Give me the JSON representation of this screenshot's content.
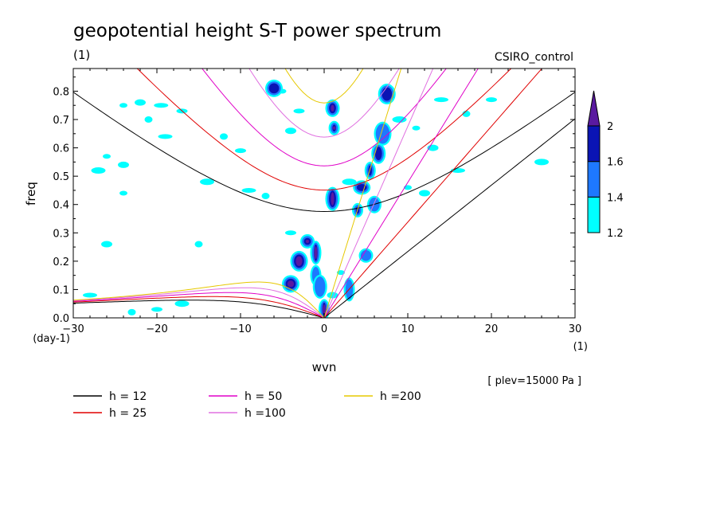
{
  "chart_data": {
    "type": "heatmap",
    "title": "geopotential height S-T power spectrum",
    "subtitle_left": "(1)",
    "subtitle_right": "CSIRO_control",
    "xlabel": "wvn",
    "ylabel": "freq",
    "x_unit": "(1)",
    "y_unit": "(day-1)",
    "xlim": [
      -30,
      30
    ],
    "ylim": [
      0,
      0.88
    ],
    "x_ticks": [
      "-30",
      "-20",
      "-10",
      "0",
      "10",
      "20",
      "30"
    ],
    "y_ticks": [
      "0.0",
      "0.1",
      "0.2",
      "0.3",
      "0.4",
      "0.5",
      "0.6",
      "0.7",
      "0.8"
    ],
    "note": "[ plev=15000 Pa ]",
    "colorbar": {
      "levels": [
        "1.2",
        "1.4",
        "1.6",
        "2"
      ],
      "colors": [
        "#00ffff",
        "#1e78ff",
        "#0a14b4",
        "#5a1aa0"
      ]
    },
    "dispersion_curves": [
      {
        "label": "h = 12",
        "color": "#000000",
        "h": 12
      },
      {
        "label": "h = 25",
        "color": "#e00000",
        "h": 25
      },
      {
        "label": "h = 50",
        "color": "#e000c8",
        "h": 50
      },
      {
        "label": "h =100",
        "color": "#e070e0",
        "h": 100
      },
      {
        "label": "h =200",
        "color": "#e6c800",
        "h": 200
      }
    ],
    "contour_blobs": [
      {
        "x": 1.2,
        "y": 0.67,
        "level": 3
      },
      {
        "x": 1.0,
        "y": 0.74,
        "level": 3
      },
      {
        "x": -3.0,
        "y": 0.2,
        "level": 3
      },
      {
        "x": -1.0,
        "y": 0.23,
        "level": 3
      },
      {
        "x": -2.0,
        "y": 0.27,
        "level": 3
      },
      {
        "x": -4.0,
        "y": 0.12,
        "level": 3
      },
      {
        "x": 0.0,
        "y": 0.03,
        "level": 3
      },
      {
        "x": 1.0,
        "y": 0.42,
        "level": 3
      },
      {
        "x": 4.5,
        "y": 0.46,
        "level": 2
      },
      {
        "x": 5.5,
        "y": 0.52,
        "level": 2
      },
      {
        "x": 6.5,
        "y": 0.58,
        "level": 2
      },
      {
        "x": 7.0,
        "y": 0.65,
        "level": 1
      },
      {
        "x": 4.0,
        "y": 0.38,
        "level": 2
      },
      {
        "x": 6.0,
        "y": 0.4,
        "level": 1
      },
      {
        "x": 7.5,
        "y": 0.79,
        "level": 2
      },
      {
        "x": 3.0,
        "y": 0.1,
        "level": 1
      },
      {
        "x": 5.0,
        "y": 0.22,
        "level": 1
      },
      {
        "x": -6.0,
        "y": 0.81,
        "level": 2
      },
      {
        "x": -1.0,
        "y": 0.15,
        "level": 1
      },
      {
        "x": -0.5,
        "y": 0.11,
        "level": 1
      }
    ],
    "scatter_blobs": [
      {
        "x": -24.0,
        "y": 0.75
      },
      {
        "x": -22.0,
        "y": 0.76
      },
      {
        "x": -19.5,
        "y": 0.75
      },
      {
        "x": -21.0,
        "y": 0.7
      },
      {
        "x": -17.0,
        "y": 0.73
      },
      {
        "x": -27.0,
        "y": 0.52
      },
      {
        "x": -26.0,
        "y": 0.57
      },
      {
        "x": -24.0,
        "y": 0.54
      },
      {
        "x": -19.0,
        "y": 0.64
      },
      {
        "x": -12.0,
        "y": 0.64
      },
      {
        "x": -10.0,
        "y": 0.59
      },
      {
        "x": -14.0,
        "y": 0.48
      },
      {
        "x": -24.0,
        "y": 0.44
      },
      {
        "x": -26.0,
        "y": 0.26
      },
      {
        "x": -28.0,
        "y": 0.08
      },
      {
        "x": -23.0,
        "y": 0.02
      },
      {
        "x": -20.0,
        "y": 0.03
      },
      {
        "x": -17.0,
        "y": 0.05
      },
      {
        "x": -5.0,
        "y": 0.8
      },
      {
        "x": -4.0,
        "y": 0.66
      },
      {
        "x": -9.0,
        "y": 0.45
      },
      {
        "x": -7.0,
        "y": 0.43
      },
      {
        "x": -3.0,
        "y": 0.73
      },
      {
        "x": 9.0,
        "y": 0.7
      },
      {
        "x": 11.0,
        "y": 0.67
      },
      {
        "x": 13.0,
        "y": 0.6
      },
      {
        "x": 14.0,
        "y": 0.77
      },
      {
        "x": 17.0,
        "y": 0.72
      },
      {
        "x": 20.0,
        "y": 0.77
      },
      {
        "x": 26.0,
        "y": 0.55
      },
      {
        "x": 10.0,
        "y": 0.46
      },
      {
        "x": 12.0,
        "y": 0.44
      },
      {
        "x": 16.0,
        "y": 0.52
      },
      {
        "x": -15.0,
        "y": 0.26
      },
      {
        "x": -4.0,
        "y": 0.3
      },
      {
        "x": 3.0,
        "y": 0.48
      },
      {
        "x": 2.0,
        "y": 0.16
      },
      {
        "x": 1.0,
        "y": 0.08
      }
    ]
  }
}
